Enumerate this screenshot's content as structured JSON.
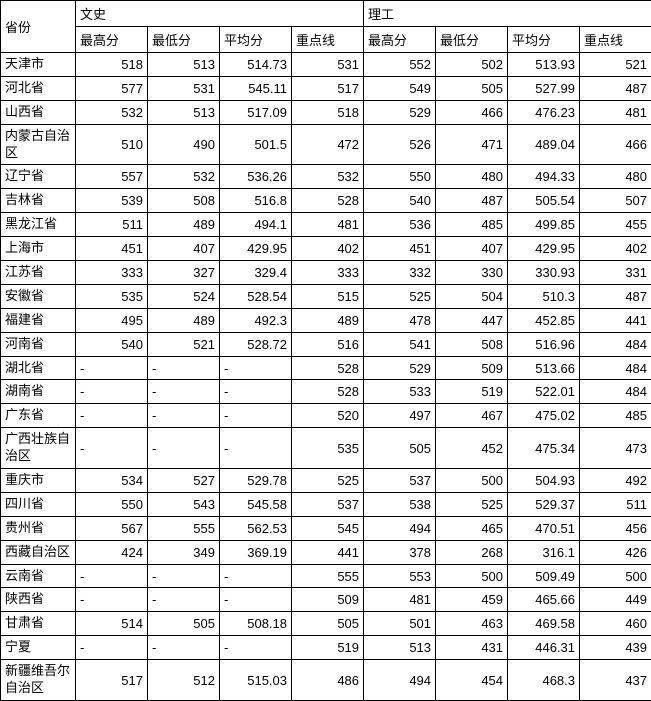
{
  "table": {
    "type": "table",
    "background_color": "#ffffff",
    "border_color": "#000000",
    "font_size_pt": 10,
    "header_group_labels": [
      "文史",
      "理工"
    ],
    "province_header": "省份",
    "sub_headers": [
      "最高分",
      "最低分",
      "平均分",
      "重点线"
    ],
    "columns_align": [
      "left",
      "right",
      "right",
      "right",
      "right",
      "right",
      "right",
      "right",
      "right"
    ],
    "rows": [
      {
        "prov": "天津市",
        "ws": [
          "518",
          "513",
          "514.73",
          "531"
        ],
        "lg": [
          "552",
          "502",
          "513.93",
          "521"
        ]
      },
      {
        "prov": "河北省",
        "ws": [
          "577",
          "531",
          "545.11",
          "517"
        ],
        "lg": [
          "549",
          "505",
          "527.99",
          "487"
        ]
      },
      {
        "prov": "山西省",
        "ws": [
          "532",
          "513",
          "517.09",
          "518"
        ],
        "lg": [
          "529",
          "466",
          "476.23",
          "481"
        ]
      },
      {
        "prov": "内蒙古自治区",
        "ws": [
          "510",
          "490",
          "501.5",
          "472"
        ],
        "lg": [
          "526",
          "471",
          "489.04",
          "466"
        ]
      },
      {
        "prov": "辽宁省",
        "ws": [
          "557",
          "532",
          "536.26",
          "532"
        ],
        "lg": [
          "550",
          "480",
          "494.33",
          "480"
        ]
      },
      {
        "prov": "吉林省",
        "ws": [
          "539",
          "508",
          "516.8",
          "528"
        ],
        "lg": [
          "540",
          "487",
          "505.54",
          "507"
        ]
      },
      {
        "prov": "黑龙江省",
        "ws": [
          "511",
          "489",
          "494.1",
          "481"
        ],
        "lg": [
          "536",
          "485",
          "499.85",
          "455"
        ]
      },
      {
        "prov": "上海市",
        "ws": [
          "451",
          "407",
          "429.95",
          "402"
        ],
        "lg": [
          "451",
          "407",
          "429.95",
          "402"
        ]
      },
      {
        "prov": "江苏省",
        "ws": [
          "333",
          "327",
          "329.4",
          "333"
        ],
        "lg": [
          "332",
          "330",
          "330.93",
          "331"
        ]
      },
      {
        "prov": "安徽省",
        "ws": [
          "535",
          "524",
          "528.54",
          "515"
        ],
        "lg": [
          "525",
          "504",
          "510.3",
          "487"
        ]
      },
      {
        "prov": "福建省",
        "ws": [
          "495",
          "489",
          "492.3",
          "489"
        ],
        "lg": [
          "478",
          "447",
          "452.85",
          "441"
        ]
      },
      {
        "prov": "河南省",
        "ws": [
          "540",
          "521",
          "528.72",
          "516"
        ],
        "lg": [
          "541",
          "508",
          "516.96",
          "484"
        ]
      },
      {
        "prov": "湖北省",
        "ws": [
          "-",
          "-",
          "-",
          "528"
        ],
        "lg": [
          "529",
          "509",
          "513.66",
          "484"
        ]
      },
      {
        "prov": "湖南省",
        "ws": [
          "-",
          "-",
          "-",
          "528"
        ],
        "lg": [
          "533",
          "519",
          "522.01",
          "484"
        ]
      },
      {
        "prov": "广东省",
        "ws": [
          "-",
          "-",
          "-",
          "520"
        ],
        "lg": [
          "497",
          "467",
          "475.02",
          "485"
        ]
      },
      {
        "prov": "广西壮族自治区",
        "ws": [
          "-",
          "-",
          "-",
          "535"
        ],
        "lg": [
          "505",
          "452",
          "475.34",
          "473"
        ]
      },
      {
        "prov": "重庆市",
        "ws": [
          "534",
          "527",
          "529.78",
          "525"
        ],
        "lg": [
          "537",
          "500",
          "504.93",
          "492"
        ]
      },
      {
        "prov": "四川省",
        "ws": [
          "550",
          "543",
          "545.58",
          "537"
        ],
        "lg": [
          "538",
          "525",
          "529.37",
          "511"
        ]
      },
      {
        "prov": "贵州省",
        "ws": [
          "567",
          "555",
          "562.53",
          "545"
        ],
        "lg": [
          "494",
          "465",
          "470.51",
          "456"
        ]
      },
      {
        "prov": "西藏自治区",
        "ws": [
          "424",
          "349",
          "369.19",
          "441"
        ],
        "lg": [
          "378",
          "268",
          "316.1",
          "426"
        ]
      },
      {
        "prov": "云南省",
        "ws": [
          "-",
          "-",
          "-",
          "555"
        ],
        "lg": [
          "553",
          "500",
          "509.49",
          "500"
        ]
      },
      {
        "prov": "陕西省",
        "ws": [
          "-",
          "-",
          "-",
          "509"
        ],
        "lg": [
          "481",
          "459",
          "465.66",
          "449"
        ]
      },
      {
        "prov": "甘肃省",
        "ws": [
          "514",
          "505",
          "508.18",
          "505"
        ],
        "lg": [
          "501",
          "463",
          "469.58",
          "460"
        ]
      },
      {
        "prov": "宁夏",
        "ws": [
          "-",
          "-",
          "-",
          "519"
        ],
        "lg": [
          "513",
          "431",
          "446.31",
          "439"
        ]
      },
      {
        "prov": "新疆维吾尔自治区",
        "ws": [
          "517",
          "512",
          "515.03",
          "486"
        ],
        "lg": [
          "494",
          "454",
          "468.3",
          "437"
        ]
      }
    ]
  }
}
